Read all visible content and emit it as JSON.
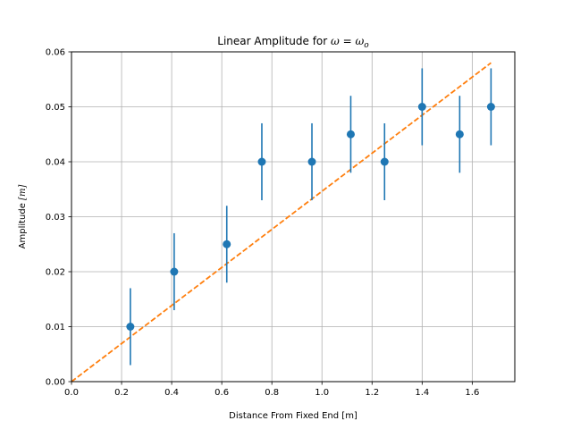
{
  "chart_data": {
    "type": "scatter",
    "title": {
      "prefix": "Linear Amplitude for ",
      "math": "ω = ω",
      "math_sub": "o"
    },
    "xlabel": "Distance From Fixed End [m]",
    "ylabel": {
      "text": "Amplitude ",
      "unit": "[m]"
    },
    "xlim": [
      0.0,
      1.77
    ],
    "ylim": [
      0.0,
      0.06
    ],
    "xticks": [
      0.0,
      0.2,
      0.4,
      0.6,
      0.8,
      1.0,
      1.2,
      1.4,
      1.6
    ],
    "xtick_labels": [
      "0.0",
      "0.2",
      "0.4",
      "0.6",
      "0.8",
      "1.0",
      "1.2",
      "1.4",
      "1.6"
    ],
    "yticks": [
      0.0,
      0.01,
      0.02,
      0.03,
      0.04,
      0.05,
      0.06
    ],
    "ytick_labels": [
      "0.00",
      "0.01",
      "0.02",
      "0.03",
      "0.04",
      "0.05",
      "0.06"
    ],
    "grid": true,
    "series": [
      {
        "kind": "errorbar",
        "color": "#1f77b4",
        "x": [
          0.235,
          0.41,
          0.62,
          0.76,
          0.96,
          1.115,
          1.25,
          1.4,
          1.55,
          1.675
        ],
        "y": [
          0.01,
          0.02,
          0.025,
          0.04,
          0.04,
          0.045,
          0.04,
          0.05,
          0.045,
          0.05
        ],
        "yerr": [
          0.007,
          0.007,
          0.007,
          0.007,
          0.007,
          0.007,
          0.007,
          0.007,
          0.007,
          0.007
        ]
      },
      {
        "kind": "fit-line",
        "color": "#ff7f0e",
        "style": "dashed",
        "x": [
          0.0,
          1.675
        ],
        "y": [
          0.0,
          0.058
        ]
      }
    ]
  }
}
